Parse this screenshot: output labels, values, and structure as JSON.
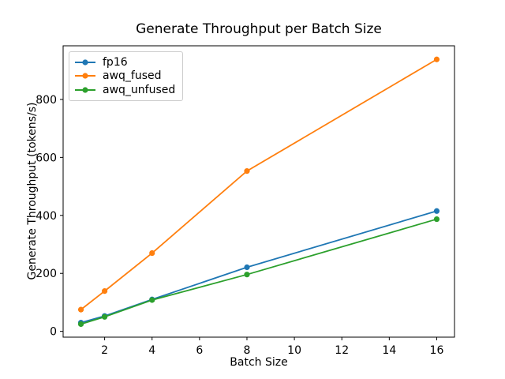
{
  "figure": {
    "background": "#ffffff"
  },
  "chart_data": {
    "type": "line",
    "title": "Generate Throughput per Batch Size",
    "xlabel": "Batch Size",
    "ylabel": "Generate Throughput (tokens/s)",
    "x": [
      1,
      2,
      4,
      8,
      16
    ],
    "series": [
      {
        "name": "fp16",
        "color": "#1f77b4",
        "values": [
          30,
          53,
          110,
          221,
          415
        ]
      },
      {
        "name": "awq_fused",
        "color": "#ff7f0e",
        "values": [
          75,
          139,
          270,
          553,
          938
        ]
      },
      {
        "name": "awq_unfused",
        "color": "#2ca02c",
        "values": [
          25,
          50,
          108,
          196,
          387
        ]
      }
    ],
    "xticks": [
      2,
      4,
      6,
      8,
      10,
      12,
      14,
      16
    ],
    "yticks": [
      0,
      200,
      400,
      600,
      800
    ],
    "xlim": [
      0.25,
      16.75
    ],
    "ylim": [
      -20,
      985
    ],
    "grid": false,
    "marker": "circle",
    "legend": {
      "position": "upper left",
      "entries": [
        "fp16",
        "awq_fused",
        "awq_unfused"
      ]
    },
    "axis_color": "#000000",
    "spine_color": "#000000"
  }
}
